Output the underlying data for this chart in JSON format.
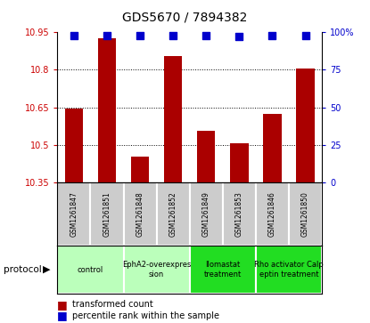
{
  "title": "GDS5670 / 7894382",
  "samples": [
    "GSM1261847",
    "GSM1261851",
    "GSM1261848",
    "GSM1261852",
    "GSM1261849",
    "GSM1261853",
    "GSM1261846",
    "GSM1261850"
  ],
  "bar_values": [
    10.645,
    10.925,
    10.455,
    10.855,
    10.555,
    10.505,
    10.625,
    10.805
  ],
  "percentile_values": [
    98,
    98,
    98,
    98,
    98,
    97,
    98,
    98
  ],
  "ylim_left": [
    10.35,
    10.95
  ],
  "ylim_right": [
    0,
    100
  ],
  "yticks_left": [
    10.35,
    10.5,
    10.65,
    10.8,
    10.95
  ],
  "yticks_right": [
    0,
    25,
    50,
    75,
    100
  ],
  "bar_color": "#aa0000",
  "dot_color": "#0000cc",
  "grid_color": "#000000",
  "bg_color": "#ffffff",
  "sample_box_color": "#cccccc",
  "protocols": [
    {
      "label": "control",
      "start": 0,
      "end": 1,
      "color": "#bbffbb"
    },
    {
      "label": "EphA2-overexpres\nsion",
      "start": 2,
      "end": 3,
      "color": "#bbffbb"
    },
    {
      "label": "Ilomastat\ntreatment",
      "start": 4,
      "end": 5,
      "color": "#22dd22"
    },
    {
      "label": "Rho activator Calp\neptin treatment",
      "start": 6,
      "end": 7,
      "color": "#22dd22"
    }
  ],
  "xlabel_protocol": "protocol",
  "legend_bar": "transformed count",
  "legend_dot": "percentile rank within the sample",
  "tick_label_color_left": "#cc0000",
  "tick_label_color_right": "#0000cc",
  "bar_width": 0.55,
  "dot_size": 40
}
